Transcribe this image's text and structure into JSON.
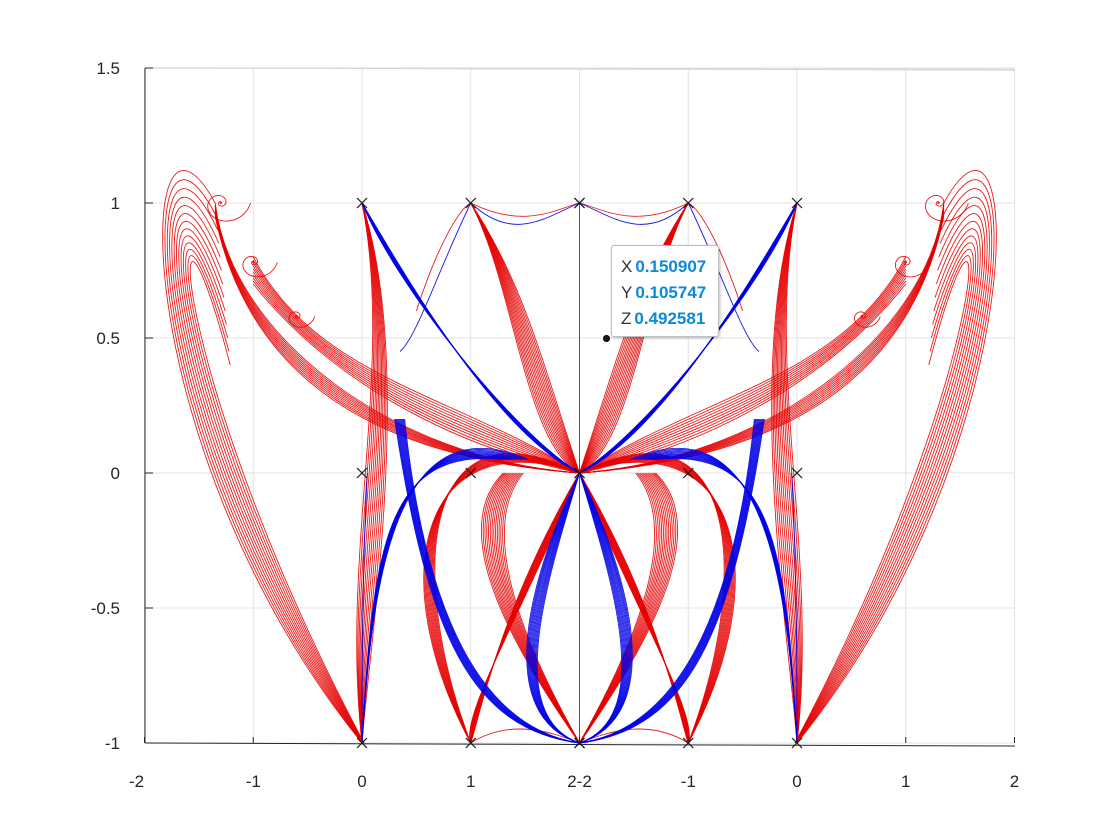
{
  "chart_data": {
    "type": "line",
    "title": "",
    "xlabel": "",
    "ylabel": "",
    "y_ticks": [
      "-1",
      "-0.5",
      "0",
      "0.5",
      "1",
      "1.5"
    ],
    "x_tick_labels": [
      "-2",
      "-1",
      "0",
      "1",
      "2-2",
      "-1",
      "0",
      "1",
      "2"
    ],
    "ylim": [
      -1,
      1.5
    ],
    "grid": true,
    "legend": "none",
    "series_colors": {
      "primary": "#e60000",
      "secondary": "#0000e6",
      "markers": "#1a1a1a"
    },
    "equilibrium_points_left": [
      {
        "x": 0,
        "y": 1
      },
      {
        "x": 1,
        "y": 1
      },
      {
        "x": 2,
        "y": 1
      },
      {
        "x": 0,
        "y": 0
      },
      {
        "x": 1,
        "y": 0
      },
      {
        "x": 2,
        "y": 0
      },
      {
        "x": 0,
        "y": -1
      },
      {
        "x": 1,
        "y": -1
      },
      {
        "x": 2,
        "y": -1
      }
    ],
    "equilibrium_points_right": [
      {
        "x": -2,
        "y": 1
      },
      {
        "x": -1,
        "y": 1
      },
      {
        "x": 0,
        "y": 1
      },
      {
        "x": -2,
        "y": 0
      },
      {
        "x": -1,
        "y": 0
      },
      {
        "x": 0,
        "y": 0
      },
      {
        "x": -2,
        "y": -1
      },
      {
        "x": -1,
        "y": -1
      },
      {
        "x": 0,
        "y": -1
      }
    ]
  },
  "datatip": {
    "x_label": "X",
    "x_value": "0.150907",
    "y_label": "Y",
    "y_value": "0.105747",
    "z_label": "Z",
    "z_value": "0.492581",
    "value_color": "#0a8ad8"
  }
}
